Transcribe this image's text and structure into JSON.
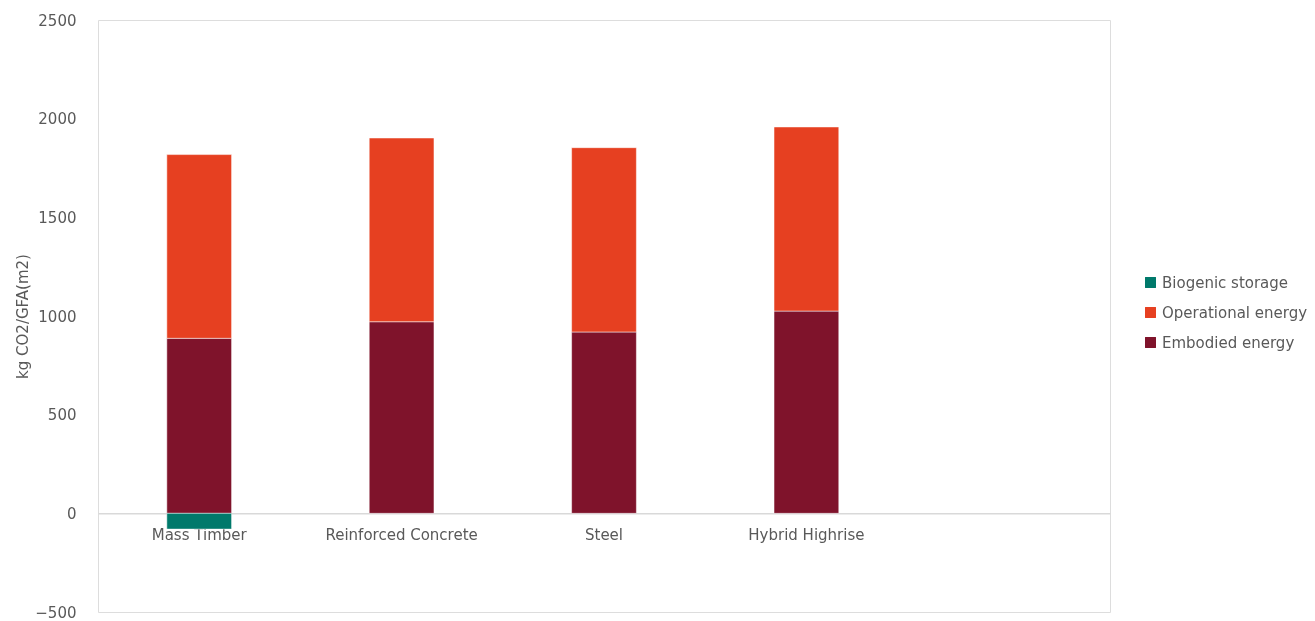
{
  "chart_data": {
    "type": "bar",
    "stacked": true,
    "categories": [
      "Mass Timber",
      "Reinforced Concrete",
      "Steel",
      "Hybrid Highrise",
      null
    ],
    "ylabel": "kg CO2/GFA(m2)",
    "ylim": [
      -500,
      2500
    ],
    "yticks": [
      -500,
      0,
      500,
      1000,
      1500,
      2000,
      2500
    ],
    "legend": "right",
    "series": [
      {
        "name": "Embodied energy",
        "color": "#7f132b",
        "values": [
          887,
          971,
          919,
          1025,
          null
        ]
      },
      {
        "name": "Operational energy",
        "color": "#e64021",
        "values": [
          931,
          931,
          934,
          933,
          null
        ]
      },
      {
        "name": "Biogenic storage",
        "color": "#00796b",
        "values": [
          -80,
          null,
          null,
          null,
          null
        ]
      }
    ]
  }
}
